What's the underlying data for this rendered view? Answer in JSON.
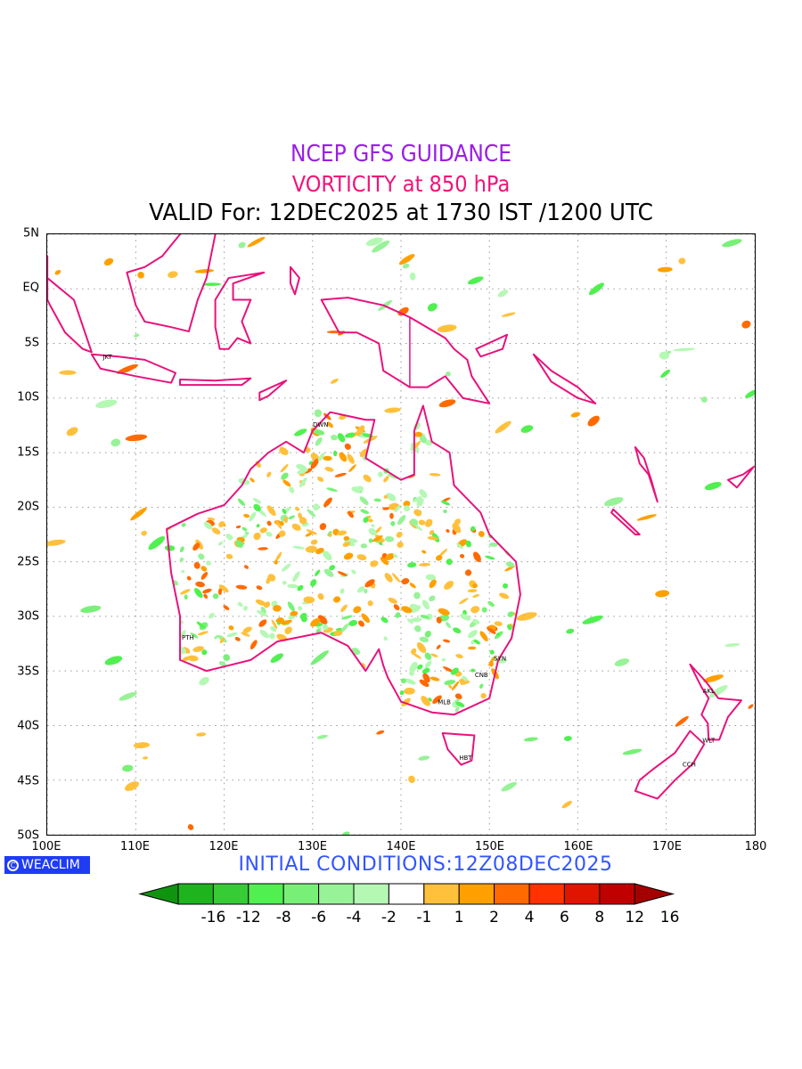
{
  "titles": {
    "line1": "NCEP GFS GUIDANCE",
    "line2": "VORTICITY at 850 hPa",
    "line3": "VALID For: 12DEC2025 at 1730 IST /1200 UTC"
  },
  "map": {
    "lon_range": [
      100,
      180
    ],
    "lat_range": [
      -50,
      5
    ],
    "y_ticks": [
      {
        "lat": 5,
        "label": "5N"
      },
      {
        "lat": 0,
        "label": "EQ"
      },
      {
        "lat": -5,
        "label": "5S"
      },
      {
        "lat": -10,
        "label": "10S"
      },
      {
        "lat": -15,
        "label": "15S"
      },
      {
        "lat": -20,
        "label": "20S"
      },
      {
        "lat": -25,
        "label": "25S"
      },
      {
        "lat": -30,
        "label": "30S"
      },
      {
        "lat": -35,
        "label": "35S"
      },
      {
        "lat": -40,
        "label": "40S"
      },
      {
        "lat": -45,
        "label": "45S"
      },
      {
        "lat": -50,
        "label": "50S"
      }
    ],
    "x_ticks": [
      {
        "lon": 100,
        "label": "100E"
      },
      {
        "lon": 110,
        "label": "110E"
      },
      {
        "lon": 120,
        "label": "120E"
      },
      {
        "lon": 130,
        "label": "130E"
      },
      {
        "lon": 140,
        "label": "140E"
      },
      {
        "lon": 150,
        "label": "150E"
      },
      {
        "lon": 160,
        "label": "160E"
      },
      {
        "lon": 170,
        "label": "170E"
      },
      {
        "lon": 180,
        "label": "180"
      }
    ],
    "cities": [
      {
        "name": "JKT",
        "lon": 106.8,
        "lat": -6.2
      },
      {
        "name": "DWN",
        "lon": 130.9,
        "lat": -12.4
      },
      {
        "name": "PTH",
        "lon": 115.9,
        "lat": -31.9
      },
      {
        "name": "SYN",
        "lon": 151.2,
        "lat": -33.8
      },
      {
        "name": "CNB",
        "lon": 149.1,
        "lat": -35.3
      },
      {
        "name": "MLB",
        "lon": 144.9,
        "lat": -37.8
      },
      {
        "name": "HBT",
        "lon": 147.3,
        "lat": -42.9
      },
      {
        "name": "AKL",
        "lon": 174.8,
        "lat": -36.8
      },
      {
        "name": "WLT",
        "lon": 174.8,
        "lat": -41.3
      },
      {
        "name": "CCH",
        "lon": 172.6,
        "lat": -43.5
      }
    ],
    "coast_color": "#e8127c"
  },
  "logo": "WEACLIM",
  "initial_conditions": "INITIAL  CONDITIONS:12Z08DEC2025",
  "colorbar": {
    "labels": [
      "-16",
      "-12",
      "-8",
      "-6",
      "-4",
      "-2",
      "-1",
      "1",
      "2",
      "4",
      "6",
      "8",
      "12",
      "16"
    ],
    "colors": [
      "#109410",
      "#1eb41e",
      "#36cc36",
      "#50f050",
      "#78f078",
      "#98f298",
      "#b4f8b4",
      "#ffffff",
      "#ffc03c",
      "#ffa000",
      "#ff6a00",
      "#ff3200",
      "#e11400",
      "#c00000",
      "#a50000"
    ]
  }
}
